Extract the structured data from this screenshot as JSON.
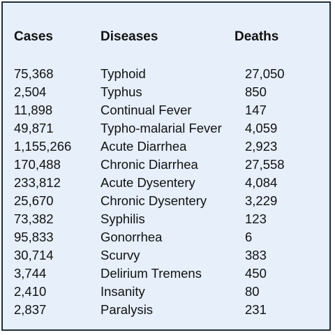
{
  "table": {
    "headers": {
      "cases": "Cases",
      "diseases": "Diseases",
      "deaths": "Deaths"
    },
    "rows": [
      {
        "cases": "75,368",
        "disease": "Typhoid",
        "deaths": "27,050"
      },
      {
        "cases": "2,504",
        "disease": "Typhus",
        "deaths": "850"
      },
      {
        "cases": "11,898",
        "disease": "Continual Fever",
        "deaths": "147"
      },
      {
        "cases": "49,871",
        "disease": "Typho-malarial Fever",
        "deaths": "4,059"
      },
      {
        "cases": "1,155,266",
        "disease": "Acute Diarrhea",
        "deaths": "2,923"
      },
      {
        "cases": "170,488",
        "disease": "Chronic Diarrhea",
        "deaths": "27,558"
      },
      {
        "cases": "233,812",
        "disease": "Acute Dysentery",
        "deaths": "4,084"
      },
      {
        "cases": "25,670",
        "disease": "Chronic Dysentery",
        "deaths": "3,229"
      },
      {
        "cases": "73,382",
        "disease": "Syphilis",
        "deaths": "123"
      },
      {
        "cases": "95,833",
        "disease": "Gonorrhea",
        "deaths": "6"
      },
      {
        "cases": "30,714",
        "disease": "Scurvy",
        "deaths": "383"
      },
      {
        "cases": "3,744",
        "disease": "Delirium Tremens",
        "deaths": "450"
      },
      {
        "cases": "2,410",
        "disease": "Insanity",
        "deaths": "80"
      },
      {
        "cases": "2,837",
        "disease": "Paralysis",
        "deaths": "231"
      }
    ]
  }
}
